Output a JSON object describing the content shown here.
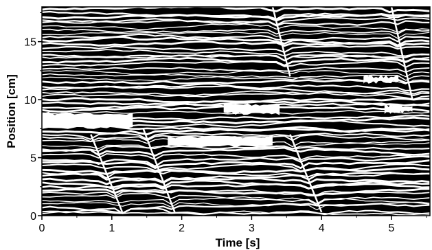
{
  "chart_data": {
    "type": "heatmap",
    "title": "",
    "xlabel": "Time  [s]",
    "ylabel": "Position  [cm]",
    "xlim": [
      0,
      5.55
    ],
    "ylim": [
      0,
      18
    ],
    "x_ticks": [
      0,
      1,
      2,
      3,
      4,
      5
    ],
    "y_ticks": [
      0,
      5,
      10,
      15
    ],
    "x_tick_labels": [
      "0",
      "1",
      "2",
      "3",
      "4",
      "5"
    ],
    "y_tick_labels": [
      "0",
      "5",
      "10",
      "15"
    ],
    "grid": false,
    "legend": "none",
    "colors": {
      "background": "#000000",
      "streaks": "#ffffff"
    },
    "bright_bands": [
      {
        "y_from": 7.6,
        "y_to": 8.8,
        "x_from": 0.0,
        "x_to": 1.3
      },
      {
        "y_from": 6.0,
        "y_to": 6.8,
        "x_from": 1.8,
        "x_to": 3.3
      },
      {
        "y_from": 8.8,
        "y_to": 9.6,
        "x_from": 2.6,
        "x_to": 3.4
      },
      {
        "y_from": 8.9,
        "y_to": 9.5,
        "x_from": 4.9,
        "x_to": 5.3
      },
      {
        "y_from": 11.5,
        "y_to": 12.0,
        "x_from": 4.6,
        "x_to": 5.1
      }
    ],
    "streak_diagonals": [
      {
        "x_start": 0.7,
        "y_start": 7.0,
        "x_end": 1.15,
        "y_end": 0.3
      },
      {
        "x_start": 1.45,
        "y_start": 7.5,
        "x_end": 1.9,
        "y_end": 0.3
      },
      {
        "x_start": 3.55,
        "y_start": 7.0,
        "x_end": 4.0,
        "y_end": 0.3
      },
      {
        "x_start": 3.3,
        "y_start": 18.0,
        "x_end": 3.55,
        "y_end": 12.0
      },
      {
        "x_start": 5.0,
        "y_start": 18.0,
        "x_end": 5.3,
        "y_end": 10.0
      }
    ]
  }
}
